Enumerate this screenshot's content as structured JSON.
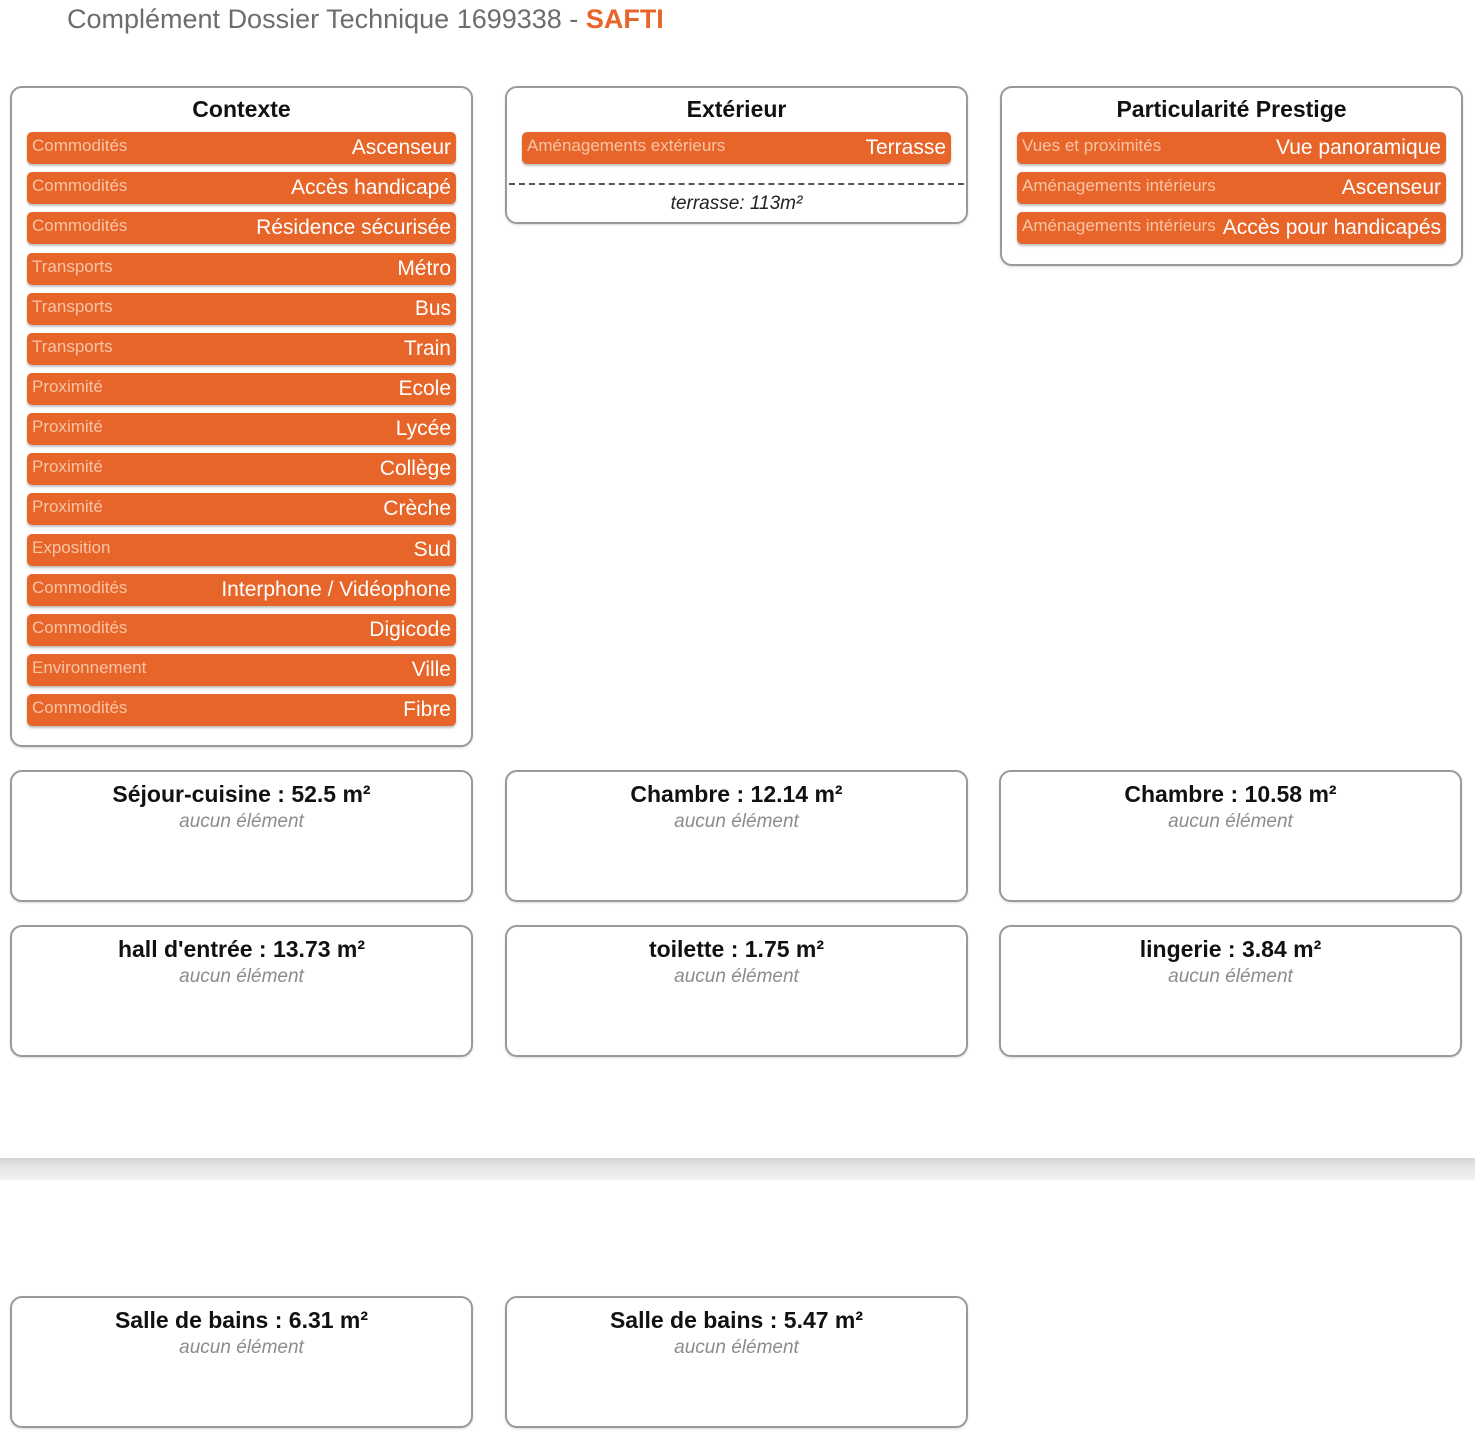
{
  "header": {
    "title": "Complément Dossier Technique 1699338 - ",
    "brand": "SAFTI"
  },
  "contexte": {
    "title": "Contexte",
    "items": [
      {
        "category": "Commodités",
        "value": "Ascenseur"
      },
      {
        "category": "Commodités",
        "value": "Accès handicapé"
      },
      {
        "category": "Commodités",
        "value": "Résidence sécurisée"
      },
      {
        "category": "Transports",
        "value": "Métro"
      },
      {
        "category": "Transports",
        "value": "Bus"
      },
      {
        "category": "Transports",
        "value": "Train"
      },
      {
        "category": "Proximité",
        "value": "Ecole"
      },
      {
        "category": "Proximité",
        "value": "Lycée"
      },
      {
        "category": "Proximité",
        "value": "Collège"
      },
      {
        "category": "Proximité",
        "value": "Crèche"
      },
      {
        "category": "Exposition",
        "value": "Sud"
      },
      {
        "category": "Commodités",
        "value": "Interphone / Vidéophone"
      },
      {
        "category": "Commodités",
        "value": "Digicode"
      },
      {
        "category": "Environnement",
        "value": "Ville"
      },
      {
        "category": "Commodités",
        "value": "Fibre"
      }
    ]
  },
  "exterieur": {
    "title": "Extérieur",
    "items": [
      {
        "category": "Aménagements extérieurs",
        "value": "Terrasse"
      }
    ],
    "note": "terrasse: 113m²"
  },
  "prestige": {
    "title": "Particularité Prestige",
    "items": [
      {
        "category": "Vues et proximités",
        "value": "Vue panoramique"
      },
      {
        "category": "Aménagements intérieurs",
        "value": "Ascenseur"
      },
      {
        "category": "Aménagements intérieurs",
        "value": "Accès pour handicapés"
      }
    ]
  },
  "rooms": [
    {
      "title": "Séjour-cuisine : 52.5 m²",
      "empty": "aucun élément"
    },
    {
      "title": "Chambre : 12.14 m²",
      "empty": "aucun élément"
    },
    {
      "title": "Chambre : 10.58 m²",
      "empty": "aucun élément"
    },
    {
      "title": "hall d'entrée : 13.73 m²",
      "empty": "aucun élément"
    },
    {
      "title": "toilette : 1.75 m²",
      "empty": "aucun élément"
    },
    {
      "title": "lingerie : 3.84 m²",
      "empty": "aucun élément"
    },
    {
      "title": "Salle de bains : 6.31 m²",
      "empty": "aucun élément"
    },
    {
      "title": "Salle de bains : 5.47 m²",
      "empty": "aucun élément"
    }
  ],
  "colors": {
    "accent": "#e8652a",
    "border": "#9a9a9a",
    "muted": "#8c8c8c"
  }
}
